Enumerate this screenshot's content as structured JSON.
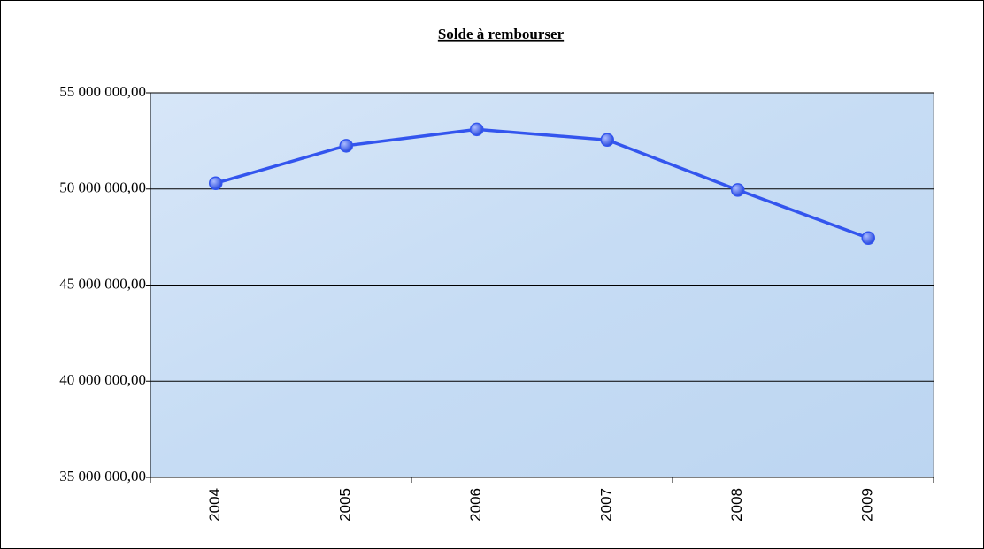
{
  "chart_data": {
    "type": "line",
    "title": "Solde à rembourser",
    "categories": [
      "2004",
      "2005",
      "2006",
      "2007",
      "2008",
      "2009"
    ],
    "values": [
      50300000,
      52250000,
      53100000,
      52550000,
      49950000,
      47450000
    ],
    "color": "#3355ee",
    "ylim": [
      35000000,
      55000000
    ],
    "yticks": [
      {
        "value": 35000000,
        "label": "35 000 000,00"
      },
      {
        "value": 40000000,
        "label": "40 000 000,00"
      },
      {
        "value": 45000000,
        "label": "45 000 000,00"
      },
      {
        "value": 50000000,
        "label": "50 000 000,00"
      },
      {
        "value": 55000000,
        "label": "55 000 000,00"
      }
    ],
    "grid": true
  }
}
